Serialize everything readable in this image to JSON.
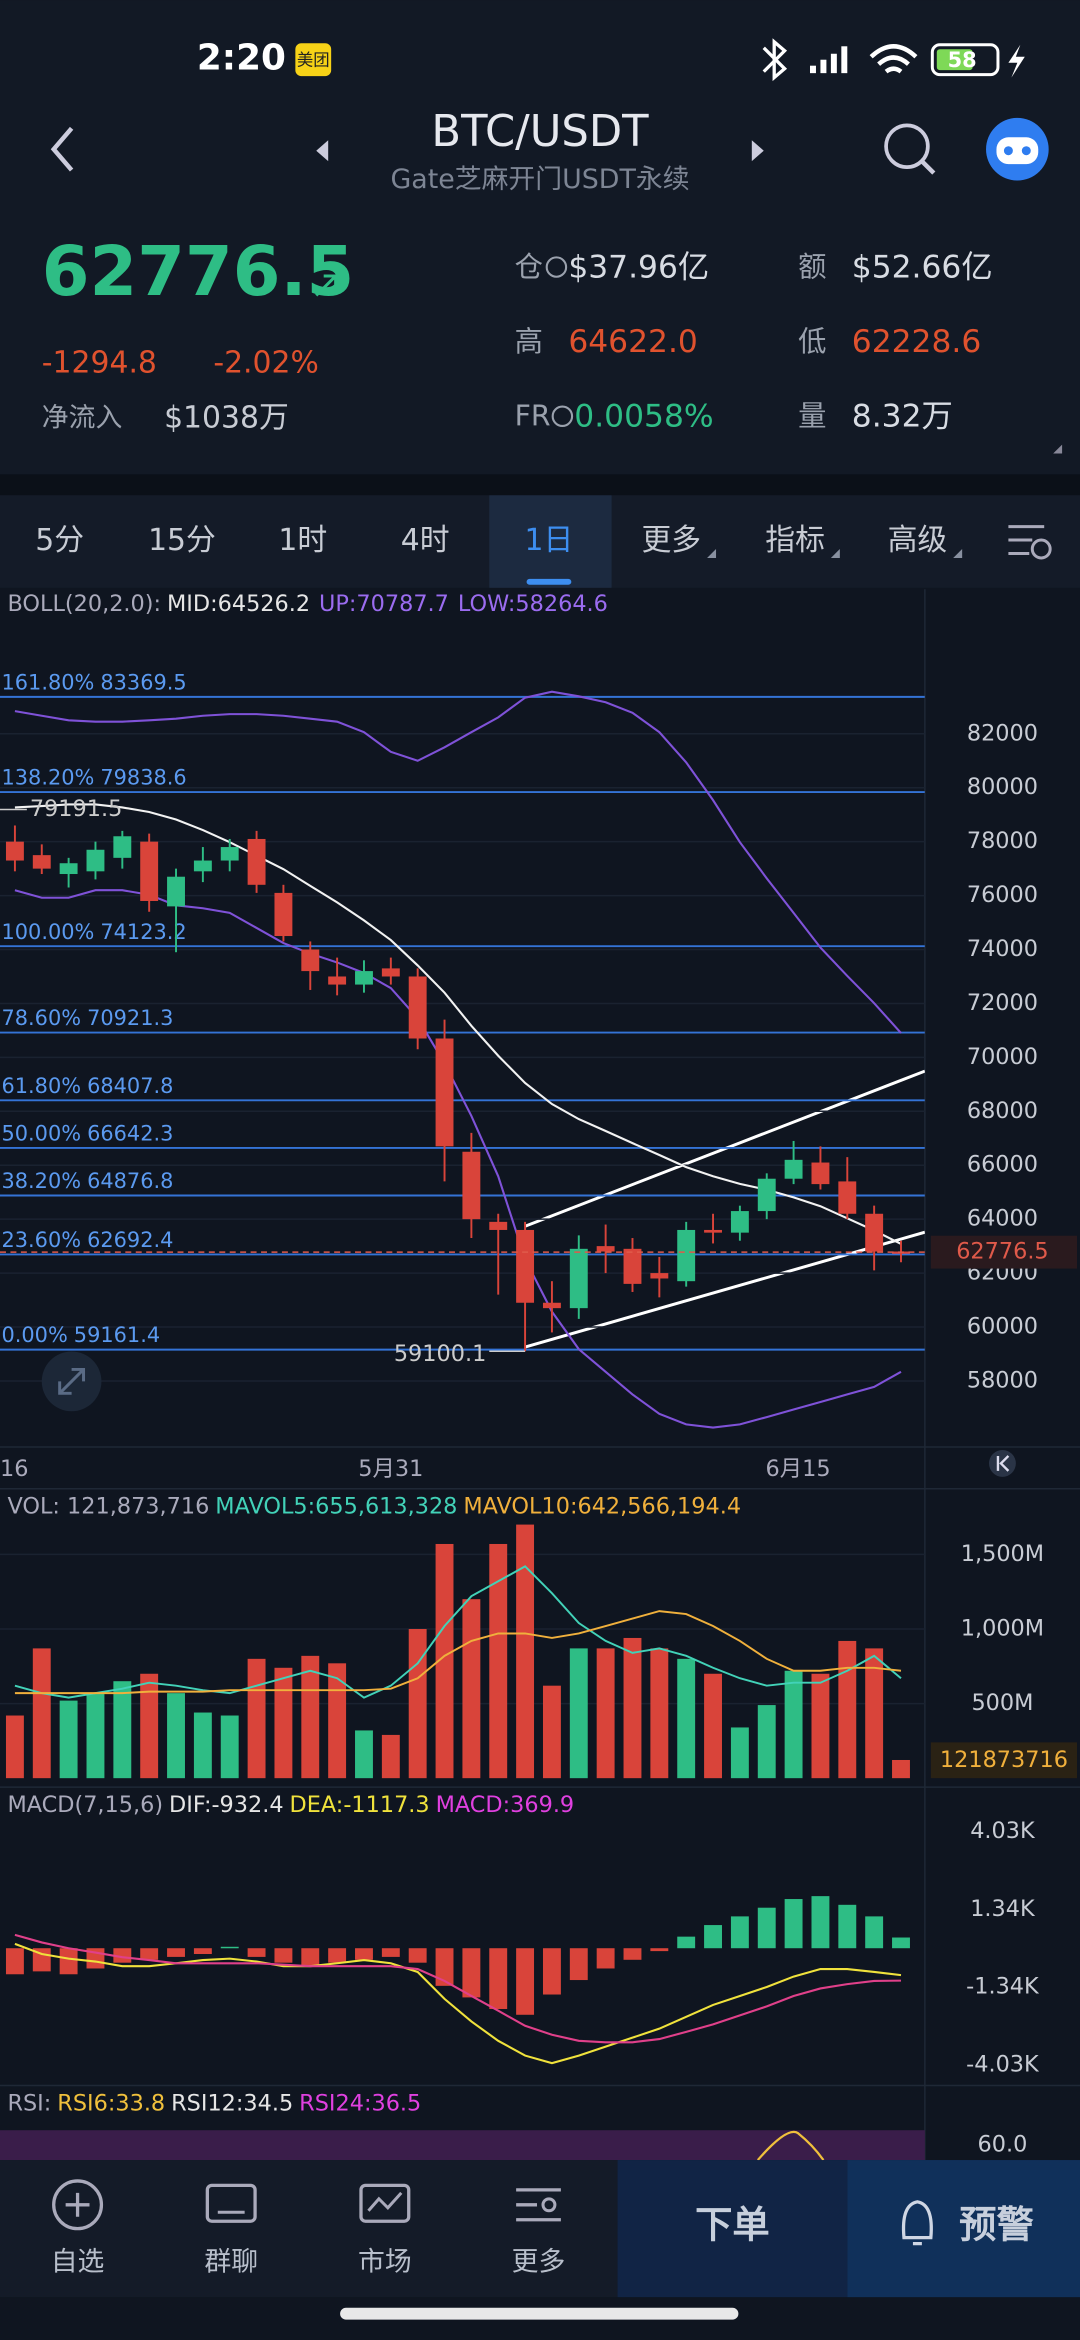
{
  "status_bar": {
    "time": "2:20",
    "badge": "美团",
    "battery": "58"
  },
  "nav": {
    "title": "BTC/USDT",
    "subtitle": "Gate芝麻开门USDT永续"
  },
  "ticker": {
    "price": "62776.5",
    "change": "-1294.8",
    "change_pct": "-2.02%",
    "netflow_label": "净流入",
    "netflow": "$1038万",
    "stats": [
      {
        "label": "仓",
        "value": "$37.96亿"
      },
      {
        "label": "额",
        "value": "$52.66亿"
      },
      {
        "label": "高",
        "value": "64622.0"
      },
      {
        "label": "低",
        "value": "62228.6"
      },
      {
        "label": "FR",
        "value": "0.0058%"
      },
      {
        "label": "量",
        "value": "8.32万"
      }
    ]
  },
  "tabs": [
    "5分",
    "15分",
    "1时",
    "4时",
    "1日",
    "更多",
    "指标",
    "高级"
  ],
  "selected_tab": 4,
  "kline": {
    "indicator": "BOLL(20,2.0):",
    "mid": "MID:64526.2",
    "up": "UP:70787.7",
    "low": "LOW:58264.6",
    "opens": [
      78000,
      77500,
      76800,
      76900,
      77400,
      78000,
      75600,
      76900,
      77300,
      78100,
      76100,
      74000,
      73000,
      72700,
      73300,
      73000,
      70700,
      66500,
      63900,
      63600,
      60900,
      60700,
      63000,
      62900,
      62000,
      61700,
      63600,
      63500,
      64300,
      65500,
      66100,
      65400,
      64200,
      62800
    ],
    "highs": [
      78600,
      77900,
      77400,
      78000,
      78400,
      78300,
      77000,
      77800,
      78100,
      78400,
      76400,
      74300,
      73700,
      73600,
      73700,
      73300,
      71400,
      67200,
      64200,
      63900,
      61700,
      63400,
      63800,
      63300,
      62600,
      63900,
      64200,
      64500,
      65700,
      66900,
      66700,
      66300,
      64500,
      63200
    ],
    "lows": [
      76900,
      76800,
      76300,
      76600,
      77000,
      75400,
      73900,
      76500,
      76900,
      76100,
      74300,
      72500,
      72300,
      72400,
      72700,
      70300,
      65400,
      63300,
      61200,
      59100.1,
      59800,
      60300,
      62000,
      61300,
      61100,
      61500,
      63100,
      63200,
      64000,
      65300,
      65100,
      64000,
      62100,
      62400
    ],
    "closes": [
      77300,
      77000,
      77200,
      77700,
      78200,
      75800,
      76700,
      77300,
      77800,
      76400,
      74500,
      73200,
      72700,
      73200,
      73000,
      70700,
      66700,
      64000,
      63600,
      60900,
      60700,
      62900,
      62800,
      61600,
      61800,
      63600,
      63500,
      64300,
      65500,
      66200,
      65300,
      64200,
      62800,
      62776.5
    ],
    "boll_upper": [
      82840,
      82670,
      82500,
      82450,
      82450,
      82500,
      82560,
      82670,
      82730,
      82730,
      82670,
      82560,
      82450,
      82060,
      81330,
      81000,
      81500,
      82060,
      82610,
      83340,
      83560,
      83390,
      83170,
      82780,
      82060,
      80940,
      79540,
      77980,
      76640,
      75360,
      74070,
      73020,
      72010,
      70900
    ],
    "boll_lower": [
      76200,
      75920,
      75920,
      76200,
      76200,
      76030,
      75640,
      75530,
      75360,
      74800,
      74240,
      73850,
      73520,
      73130,
      72570,
      71450,
      69780,
      67830,
      65590,
      62520,
      60570,
      59180,
      58340,
      57500,
      56780,
      56390,
      56270,
      56390,
      56660,
      56940,
      57220,
      57500,
      57780,
      58340
    ],
    "ma": [
      79270,
      79320,
      79380,
      79380,
      79270,
      79100,
      78820,
      78430,
      77980,
      77480,
      76980,
      76360,
      75750,
      75080,
      74350,
      73410,
      72400,
      71170,
      70060,
      69050,
      68270,
      67710,
      67270,
      66820,
      66380,
      65930,
      65590,
      65310,
      65090,
      64810,
      64480,
      64030,
      63580,
      63080
    ],
    "ylim": [
      55550,
      87360
    ],
    "yticks": [
      58000,
      60000,
      62000,
      64000,
      66000,
      68000,
      70000,
      72000,
      74000,
      76000,
      78000,
      80000,
      82000
    ],
    "fib": [
      {
        "pct": "161.80%",
        "price": 83369.5
      },
      {
        "pct": "138.20%",
        "price": 79838.6
      },
      {
        "pct": "100.00%",
        "price": 74123.2
      },
      {
        "pct": "78.60%",
        "price": 70921.3
      },
      {
        "pct": "61.80%",
        "price": 68407.8
      },
      {
        "pct": "50.00%",
        "price": 66642.3
      },
      {
        "pct": "38.20%",
        "price": 64876.8
      },
      {
        "pct": "23.60%",
        "price": 62692.4
      },
      {
        "pct": "0.00%",
        "price": 59161.4
      }
    ],
    "high_mark": 79191.5,
    "x_labels": [
      "16",
      "5月31",
      "6月15"
    ]
  },
  "volume": {
    "label": "VOL: 121,873,716",
    "mavol5": "MAVOL5:655,613,328",
    "mavol10": "MAVOL10:642,566,194.4",
    "values": [
      420,
      870,
      520,
      570,
      650,
      700,
      570,
      440,
      420,
      800,
      740,
      820,
      770,
      320,
      290,
      1000,
      1570,
      1200,
      1570,
      1700,
      620,
      870,
      870,
      940,
      870,
      800,
      700,
      340,
      490,
      720,
      700,
      920,
      870,
      121.873716
    ],
    "ma5": [
      620,
      570,
      540,
      570,
      600,
      640,
      620,
      590,
      570,
      620,
      670,
      720,
      670,
      540,
      620,
      770,
      1020,
      1220,
      1320,
      1420,
      1240,
      1040,
      920,
      840,
      870,
      820,
      740,
      670,
      620,
      640,
      640,
      720,
      820,
      670
    ],
    "ma10": [
      570,
      570,
      570,
      570,
      570,
      580,
      580,
      580,
      590,
      590,
      590,
      590,
      590,
      590,
      600,
      670,
      820,
      920,
      970,
      970,
      940,
      970,
      1020,
      1070,
      1120,
      1100,
      1020,
      920,
      800,
      720,
      720,
      740,
      740,
      720
    ],
    "ylim": [
      0,
      1720
    ],
    "yticks": [
      {
        "value": 1500,
        "label": "1,500M"
      },
      {
        "value": 1000,
        "label": "1,000M"
      },
      {
        "value": 500,
        "label": "500M"
      }
    ],
    "current": "121873716"
  },
  "macd": {
    "label": "MACD(7,15,6)",
    "dif": "DIF:-932.4",
    "dea": "DEA:-1117.3",
    "macd": "MACD:369.9",
    "hist": [
      -0.9,
      -0.8,
      -0.9,
      -0.7,
      -0.5,
      -0.4,
      -0.3,
      -0.2,
      0.05,
      -0.3,
      -0.5,
      -0.6,
      -0.5,
      -0.4,
      -0.3,
      -0.5,
      -1.3,
      -1.7,
      -2.1,
      -2.3,
      -1.6,
      -1.1,
      -0.7,
      -0.4,
      -0.1,
      0.4,
      0.8,
      1.1,
      1.4,
      1.7,
      1.8,
      1.5,
      1.1,
      0.37
    ],
    "line1": [
      0.15,
      -0.2,
      -0.36,
      -0.46,
      -0.62,
      -0.62,
      -0.52,
      -0.41,
      -0.36,
      -0.46,
      -0.62,
      -0.62,
      -0.52,
      -0.41,
      -0.52,
      -0.82,
      -1.75,
      -2.53,
      -3.2,
      -3.71,
      -3.97,
      -3.71,
      -3.4,
      -3.09,
      -2.78,
      -2.37,
      -1.96,
      -1.65,
      -1.34,
      -0.98,
      -0.72,
      -0.72,
      -0.82,
      -0.93
    ],
    "line2": [
      0.46,
      0.2,
      0,
      -0.15,
      -0.31,
      -0.41,
      -0.52,
      -0.52,
      -0.52,
      -0.52,
      -0.57,
      -0.62,
      -0.62,
      -0.62,
      -0.62,
      -0.72,
      -1.13,
      -1.65,
      -2.16,
      -2.68,
      -2.99,
      -3.2,
      -3.25,
      -3.25,
      -3.14,
      -2.89,
      -2.63,
      -2.32,
      -2.01,
      -1.65,
      -1.39,
      -1.24,
      -1.13,
      -1.12
    ],
    "ylim": [
      -4.588,
      4.433
    ],
    "yticks": [
      {
        "value": 4.03,
        "label": "4.03K"
      },
      {
        "value": 1.34,
        "label": "1.34K"
      },
      {
        "value": -1.34,
        "label": "-1.34K"
      },
      {
        "value": -4.03,
        "label": "-4.03K"
      }
    ]
  },
  "rsi": {
    "label": "RSI:",
    "rsi6": "RSI6:33.8",
    "rsi12": "RSI12:34.5",
    "rsi24": "RSI24:36.5",
    "yticks": [
      {
        "value": 60,
        "label": "60.0"
      }
    ]
  },
  "bottom_nav": [
    "自选",
    "群聊",
    "市场",
    "更多"
  ],
  "actions": [
    "下单",
    "预警"
  ]
}
